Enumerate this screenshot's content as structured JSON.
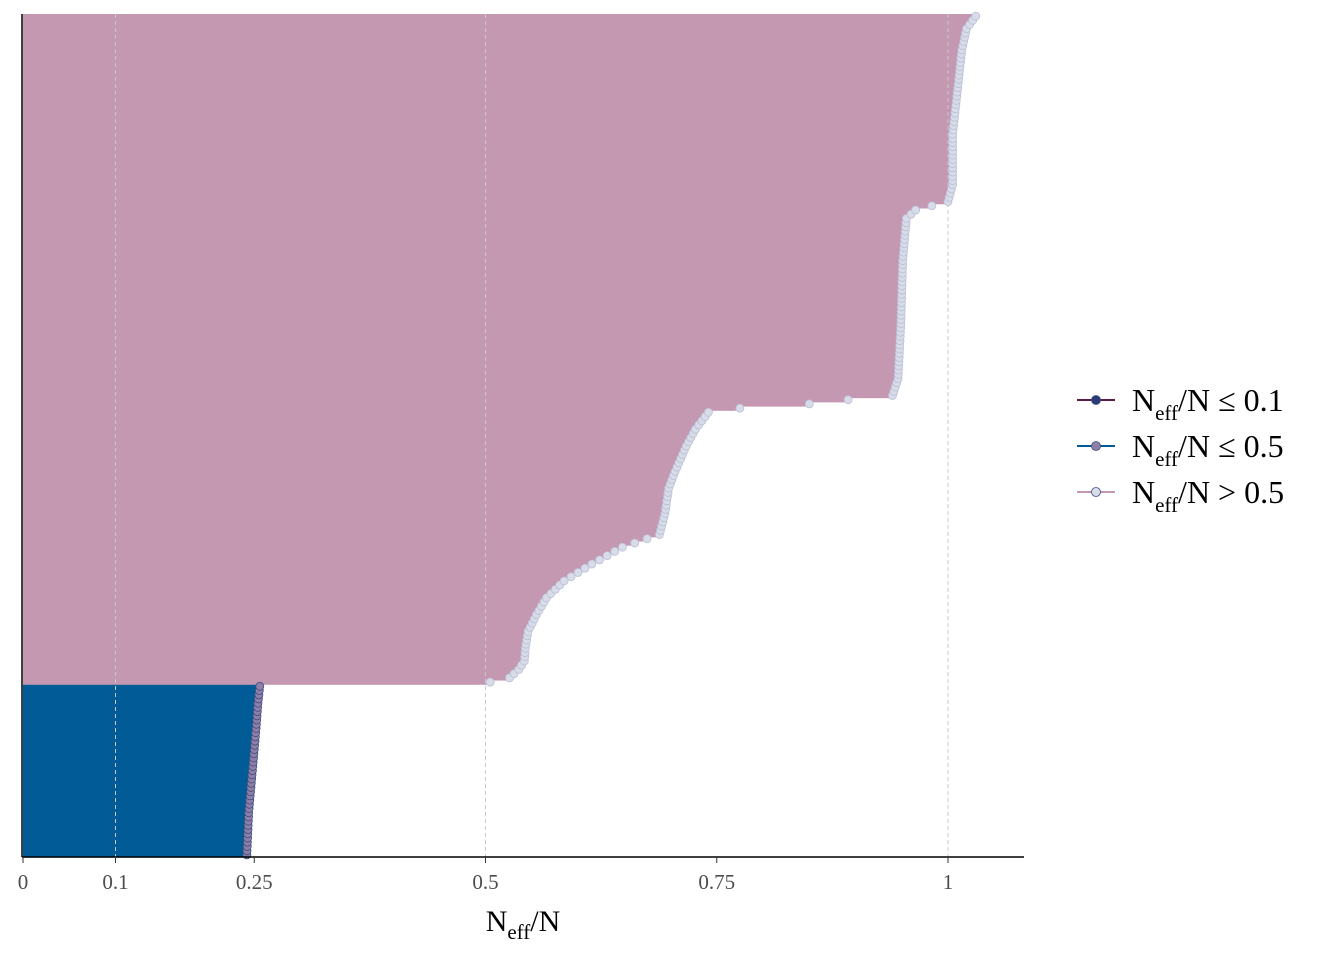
{
  "chart_data": {
    "type": "bar",
    "orientation": "horizontal",
    "title": "",
    "xlabel": {
      "main": "N",
      "sub": "eff",
      "rest": "/N"
    },
    "ylabel": "",
    "xlim": [
      0,
      1.08
    ],
    "x_ticks": [
      0,
      0.1,
      0.25,
      0.5,
      0.75,
      1
    ],
    "x_tick_labels": [
      "0",
      "0.1",
      "0.25",
      "0.5",
      "0.75",
      "1"
    ],
    "grid": {
      "vertical_dashed_at": [
        0.1,
        0.5,
        1
      ]
    },
    "legend_position": "right",
    "colors": {
      "low": "#5d1a4a",
      "mid_fill": "#005b96",
      "mid_point": "#8f7fa8",
      "high_fill": "#c598b2",
      "high_point": "#d8dbe8",
      "point_stroke": "#3c4f80"
    },
    "legend": [
      {
        "main": "N",
        "sub": "eff",
        "rest": "/N ≤ 0.1",
        "color": "#5d1a4a",
        "point": "#2c3b78"
      },
      {
        "main": "N",
        "sub": "eff",
        "rest": "/N ≤ 0.5",
        "color": "#005b96",
        "point": "#8f7fa8"
      },
      {
        "main": "N",
        "sub": "eff",
        "rest": "/N > 0.5",
        "color": "#c598b2",
        "point": "#d8dbe8"
      }
    ],
    "series": [
      {
        "name": "N_eff/N ≤ 0.5",
        "group": "mid",
        "count": 41,
        "profile": [
          [
            0,
            0.242
          ],
          [
            10,
            0.244
          ],
          [
            20,
            0.248
          ],
          [
            30,
            0.252
          ],
          [
            36,
            0.254
          ],
          [
            40,
            0.256
          ]
        ]
      },
      {
        "name": "N_eff/N > 0.5",
        "group": "high",
        "count": 159,
        "profile": [
          [
            0,
            0.505
          ],
          [
            1,
            0.526
          ],
          [
            3,
            0.536
          ],
          [
            5,
            0.542
          ],
          [
            8,
            0.543
          ],
          [
            12,
            0.546
          ],
          [
            16,
            0.555
          ],
          [
            20,
            0.566
          ],
          [
            24,
            0.585
          ],
          [
            28,
            0.615
          ],
          [
            32,
            0.648
          ],
          [
            35,
            0.688
          ],
          [
            40,
            0.694
          ],
          [
            46,
            0.698
          ],
          [
            50,
            0.705
          ],
          [
            56,
            0.717
          ],
          [
            60,
            0.727
          ],
          [
            64,
            0.741
          ],
          [
            65,
            0.775
          ],
          [
            66,
            0.85
          ],
          [
            67,
            0.892
          ],
          [
            68,
            0.94
          ],
          [
            72,
            0.946
          ],
          [
            85,
            0.949
          ],
          [
            100,
            0.951
          ],
          [
            110,
            0.955
          ],
          [
            112,
            0.965
          ],
          [
            114,
            1.0
          ],
          [
            118,
            1.005
          ],
          [
            130,
            1.005
          ],
          [
            150,
            1.015
          ],
          [
            155,
            1.02
          ],
          [
            158,
            1.03
          ]
        ]
      }
    ]
  }
}
